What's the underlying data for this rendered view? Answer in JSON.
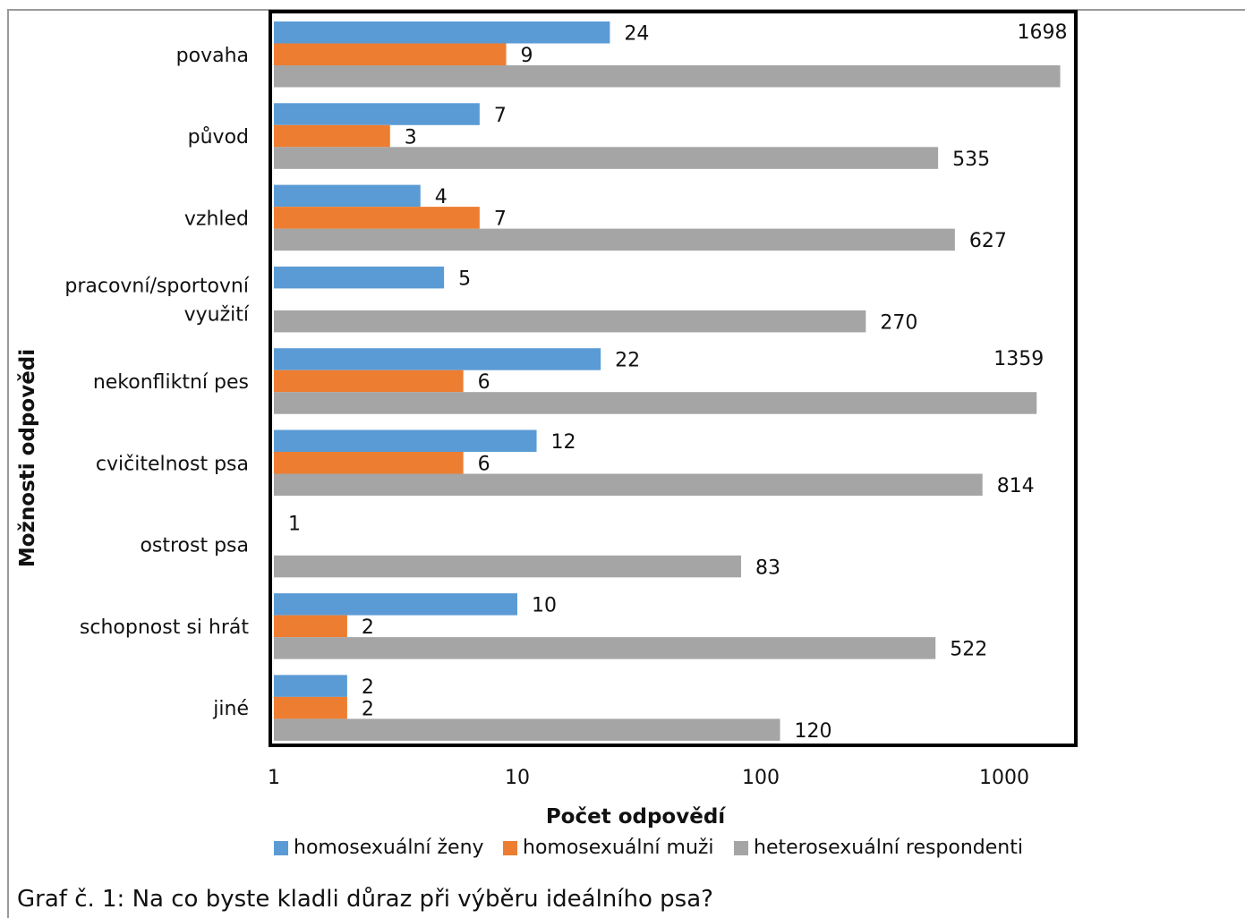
{
  "chart_data": {
    "type": "bar",
    "orientation": "horizontal",
    "x_scale": "log",
    "xlim": [
      1,
      1800
    ],
    "x_ticks": [
      "1",
      "10",
      "100",
      "1000"
    ],
    "xlabel": "Počet odpovědí",
    "ylabel": "Možnosti odpovědi",
    "legend_position": "bottom",
    "categories": [
      [
        "povaha"
      ],
      [
        "původ"
      ],
      [
        "vzhled"
      ],
      [
        "pracovní/sportovní",
        "využití"
      ],
      [
        "nekonfliktní pes"
      ],
      [
        "cvičitelnost psa"
      ],
      [
        "ostrost psa"
      ],
      [
        "schopnost si hrát"
      ],
      [
        "jiné"
      ]
    ],
    "series": [
      {
        "name": "homosexuální ženy",
        "color": "#5b9bd5",
        "values": [
          24,
          7,
          4,
          5,
          22,
          12,
          1,
          10,
          2
        ]
      },
      {
        "name": "homosexuální muži",
        "color": "#ed7d31",
        "values": [
          9,
          3,
          7,
          null,
          6,
          6,
          null,
          2,
          2
        ]
      },
      {
        "name": "heterosexuální respondenti",
        "color": "#a5a5a5",
        "values": [
          1698,
          535,
          627,
          270,
          1359,
          814,
          83,
          522,
          120
        ]
      }
    ]
  },
  "caption": "Graf č. 1: Na co byste kladli důraz při výběru ideálního psa?"
}
